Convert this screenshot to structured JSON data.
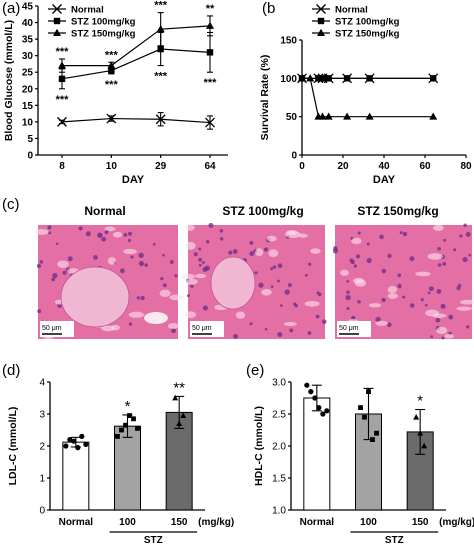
{
  "chart_data": [
    {
      "panel": "(a)",
      "type": "line",
      "xlabel": "DAY",
      "ylabel": "Blood Glucose (mmol/L)",
      "categories": [
        "8",
        "10",
        "29",
        "64"
      ],
      "ylim": [
        0,
        45
      ],
      "yticks": [
        "0",
        "5",
        "10",
        "15",
        "20",
        "25",
        "30",
        "35",
        "40",
        "45"
      ],
      "series": [
        {
          "name": "Normal",
          "marker": "x",
          "values": [
            10,
            11,
            10.8,
            9.8
          ],
          "errors": [
            0.5,
            0.8,
            2.0,
            2.0
          ]
        },
        {
          "name": "STZ 100mg/kg",
          "marker": "square",
          "values": [
            23,
            25.5,
            32,
            31
          ],
          "errors": [
            3,
            1,
            5,
            6
          ]
        },
        {
          "name": "STZ 150mg/kg",
          "marker": "triangle",
          "values": [
            27,
            27,
            38,
            39
          ],
          "errors": [
            2,
            1,
            5,
            3
          ]
        }
      ],
      "annotations": [
        {
          "x": "8",
          "above": "***",
          "below": "***"
        },
        {
          "x": "10",
          "above": "***",
          "below": "***"
        },
        {
          "x": "29",
          "above": "***",
          "below": "***"
        },
        {
          "x": "64",
          "above": "**",
          "below": "***"
        }
      ],
      "legend": "top-left"
    },
    {
      "panel": "(b",
      "type": "line",
      "xlabel": "DAY",
      "ylabel": "Survival Rate (%)",
      "xlim": [
        0,
        80
      ],
      "ylim": [
        0,
        150
      ],
      "xticks": [
        "0",
        "20",
        "40",
        "60",
        "80"
      ],
      "yticks": [
        "0",
        "50",
        "100",
        "150"
      ],
      "series": [
        {
          "name": "Normal",
          "marker": "x",
          "x": [
            0,
            8,
            10,
            13,
            22,
            33,
            64
          ],
          "values": [
            100,
            100,
            100,
            100,
            100,
            100,
            100
          ]
        },
        {
          "name": "STZ 100mg/kg",
          "marker": "square",
          "x": [
            0,
            8,
            10,
            13,
            22,
            33,
            64
          ],
          "values": [
            100,
            100,
            100,
            100,
            100,
            100,
            100
          ]
        },
        {
          "name": "STZ 150mg/kg",
          "marker": "triangle",
          "x": [
            0,
            4,
            8,
            10,
            13,
            22,
            33,
            64
          ],
          "values": [
            100,
            100,
            50,
            50,
            50,
            50,
            50,
            50
          ]
        }
      ],
      "legend": "top-right"
    },
    {
      "panel": "(d)",
      "type": "bar",
      "ylabel": "LDL-C (mmol/L)",
      "ylim": [
        0,
        4
      ],
      "yticks": [
        "0",
        "1",
        "2",
        "3",
        "4"
      ],
      "categories": [
        "Normal",
        "100",
        "150"
      ],
      "unit_label": "(mg/kg)",
      "group_label": "STZ",
      "values": [
        2.12,
        2.62,
        3.05
      ],
      "errors": [
        0.15,
        0.35,
        0.5
      ],
      "colors": [
        "#ffffff",
        "#a3a3a3",
        "#6b6b6b"
      ],
      "significance": [
        "",
        "*",
        "**"
      ],
      "points": [
        [
          2.0,
          2.2,
          2.15,
          1.95,
          2.3,
          2.05
        ],
        [
          2.3,
          2.5,
          2.65,
          2.95,
          2.85,
          2.55
        ],
        [
          3.5,
          2.7,
          2.95
        ]
      ]
    },
    {
      "panel": "(e)",
      "type": "bar",
      "ylabel": "HDL-C (mmol/L)",
      "ylim": [
        1.0,
        3.0
      ],
      "yticks": [
        "1.0",
        "1.5",
        "2.0",
        "2.5",
        "3.0"
      ],
      "categories": [
        "Normal",
        "100",
        "150"
      ],
      "unit_label": "(mg/kg)",
      "group_label": "STZ",
      "values": [
        2.75,
        2.5,
        2.22
      ],
      "errors": [
        0.2,
        0.4,
        0.35
      ],
      "colors": [
        "#ffffff",
        "#a3a3a3",
        "#6b6b6b"
      ],
      "significance": [
        "",
        "",
        "*"
      ],
      "points": [
        [
          2.95,
          2.85,
          2.75,
          2.6,
          2.5,
          2.55
        ],
        [
          2.6,
          2.45,
          2.85,
          2.1,
          2.2
        ],
        [
          2.45,
          2.2,
          2.0
        ]
      ]
    }
  ],
  "histology": {
    "panel_label": "(c)",
    "titles": [
      "Normal",
      "STZ 100mg/kg",
      "STZ 150mg/kg"
    ],
    "scale_bar": "50 μm",
    "tissue_color": "#e46fa4",
    "islet_color": "#f1b6d2"
  }
}
